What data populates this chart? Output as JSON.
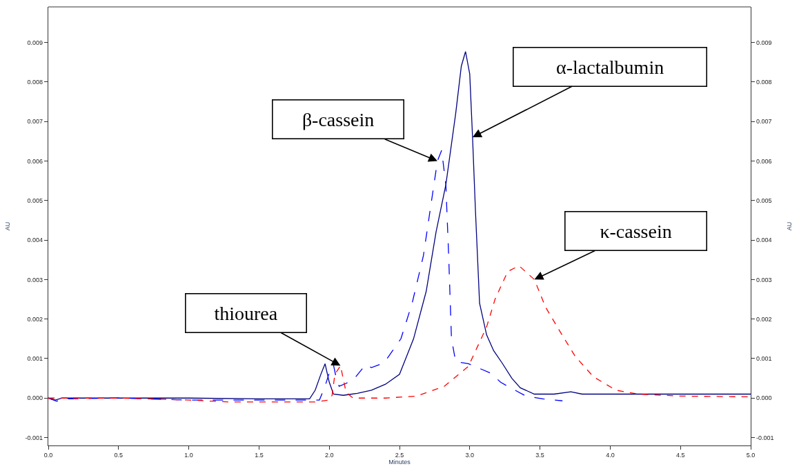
{
  "chart_data": {
    "type": "line",
    "xlabel": "Minutes",
    "ylabel": "AU",
    "y2label": "AU",
    "xlim": [
      0,
      5
    ],
    "ylim": [
      -0.0012,
      0.0099
    ],
    "y2lim": [
      -0.0012,
      0.0099
    ],
    "xticks": [
      {
        "value": 0,
        "label": "0.0"
      },
      {
        "value": 0.5,
        "label": "0.5"
      },
      {
        "value": 1,
        "label": "1.0"
      },
      {
        "value": 1.5,
        "label": "1.5"
      },
      {
        "value": 2,
        "label": "2.0"
      },
      {
        "value": 2.5,
        "label": "2.5"
      },
      {
        "value": 3,
        "label": "3.0"
      },
      {
        "value": 3.5,
        "label": "3.5"
      },
      {
        "value": 4,
        "label": "4.0"
      },
      {
        "value": 4.5,
        "label": "4.5"
      },
      {
        "value": 5,
        "label": "5.0"
      }
    ],
    "yticks": [
      {
        "value": -0.001,
        "label": "-0.001"
      },
      {
        "value": 0,
        "label": "0.000"
      },
      {
        "value": 0.001,
        "label": "0.001"
      },
      {
        "value": 0.002,
        "label": "0.002"
      },
      {
        "value": 0.003,
        "label": "0.003"
      },
      {
        "value": 0.004,
        "label": "0.004"
      },
      {
        "value": 0.005,
        "label": "0.005"
      },
      {
        "value": 0.006,
        "label": "0.006"
      },
      {
        "value": 0.007,
        "label": "0.007"
      },
      {
        "value": 0.008,
        "label": "0.008"
      },
      {
        "value": 0.009,
        "label": "0.009"
      }
    ],
    "y2ticks": [
      {
        "value": -0.001,
        "label": "-0.001"
      },
      {
        "value": 0,
        "label": "0.000"
      },
      {
        "value": 0.001,
        "label": "0.001"
      },
      {
        "value": 0.002,
        "label": "0.002"
      },
      {
        "value": 0.003,
        "label": "0.003"
      },
      {
        "value": 0.004,
        "label": "0.004"
      },
      {
        "value": 0.005,
        "label": "0.005"
      },
      {
        "value": 0.006,
        "label": "0.006"
      },
      {
        "value": 0.007,
        "label": "0.007"
      },
      {
        "value": 0.008,
        "label": "0.008"
      },
      {
        "value": 0.009,
        "label": "0.009"
      }
    ],
    "legend": false,
    "marker": "none",
    "series": [
      {
        "color": "#000080",
        "line_style": "solid",
        "x": [
          0,
          0.05,
          0.1,
          0.5,
          1.0,
          1.5,
          1.86,
          1.9,
          1.94,
          1.97,
          2.0,
          2.03,
          2.1,
          2.2,
          2.3,
          2.4,
          2.5,
          2.6,
          2.69,
          2.76,
          2.83,
          2.9,
          2.94,
          2.97,
          3.0,
          3.02,
          3.04,
          3.07,
          3.12,
          3.17,
          3.23,
          3.3,
          3.36,
          3.46,
          3.6,
          3.72,
          3.8,
          4.0,
          4.5,
          5.0
        ],
        "values": [
          0,
          -5e-05,
          0,
          0,
          0,
          -2e-05,
          -2e-05,
          0.0002,
          0.0006,
          0.00087,
          0.0004,
          0.0001,
          7e-05,
          0.00012,
          0.0002,
          0.00035,
          0.0006,
          0.0015,
          0.0027,
          0.0042,
          0.0054,
          0.0072,
          0.0084,
          0.00877,
          0.0082,
          0.0066,
          0.0048,
          0.0024,
          0.0016,
          0.0012,
          0.00089,
          0.0005,
          0.00026,
          0.0001,
          0.0001,
          0.00016,
          0.0001,
          0.0001,
          0.0001,
          0.0001
        ]
      },
      {
        "color": "#0000ff",
        "line_style": "dashed",
        "x": [
          0,
          0.06,
          0.1,
          0.5,
          1.0,
          1.5,
          1.93,
          1.97,
          2.01,
          2.03,
          2.05,
          2.07,
          2.12,
          2.18,
          2.26,
          2.3,
          2.39,
          2.51,
          2.59,
          2.67,
          2.72,
          2.77,
          2.8,
          2.83,
          2.85,
          2.87,
          2.9,
          2.99,
          3.15,
          3.22,
          3.28,
          3.4,
          3.52,
          3.66
        ],
        "values": [
          0,
          -8e-05,
          -2e-05,
          0,
          -5e-05,
          -5e-05,
          -5e-05,
          0.0003,
          0.00075,
          0.00084,
          0.0005,
          0.0003,
          0.00037,
          0.0005,
          0.00085,
          0.00077,
          0.00089,
          0.0015,
          0.0024,
          0.0036,
          0.0048,
          0.006,
          0.00627,
          0.0054,
          0.0036,
          0.0015,
          0.00092,
          0.00087,
          0.00063,
          0.0004,
          0.00028,
          5e-05,
          -2e-05,
          -7e-05
        ]
      },
      {
        "color": "#ff0000",
        "line_style": "dotted",
        "x": [
          0,
          0.5,
          1.0,
          1.3,
          1.9,
          2.0,
          2.02,
          2.04,
          2.08,
          2.12,
          2.17,
          2.4,
          2.62,
          2.82,
          2.99,
          3.12,
          3.18,
          3.27,
          3.35,
          3.46,
          3.54,
          3.64,
          3.75,
          3.88,
          4.04,
          4.2,
          4.5,
          5.0
        ],
        "values": [
          0,
          0,
          -5e-05,
          -0.0001,
          -0.0001,
          -5e-05,
          7e-05,
          0.0006,
          0.00082,
          0.00014,
          0,
          0,
          5e-05,
          0.0003,
          0.0008,
          0.0018,
          0.0025,
          0.0032,
          0.00335,
          0.003,
          0.0023,
          0.0017,
          0.00106,
          0.00054,
          0.0002,
          0.0001,
          5e-05,
          3e-05
        ]
      }
    ],
    "annotations": [
      {
        "text": "thiourea",
        "x": 2.08,
        "y": 0.00082
      },
      {
        "text": "β-cassein",
        "x": 2.77,
        "y": 0.006
      },
      {
        "text": "α-lactalbumin",
        "x": 3.02,
        "y": 0.0066
      },
      {
        "text": "κ-cassein",
        "x": 3.46,
        "y": 0.003
      }
    ]
  }
}
